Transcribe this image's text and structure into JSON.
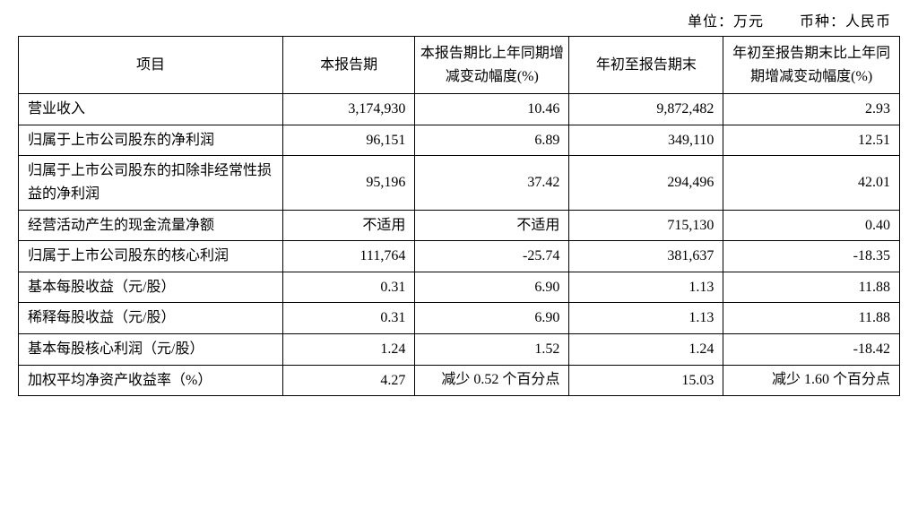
{
  "header": {
    "unit_label": "单位：万元",
    "currency_label": "币种：人民币"
  },
  "table": {
    "columns": [
      "项目",
      "本报告期",
      "本报告期比上年同期增减变动幅度(%)",
      "年初至报告期末",
      "年初至报告期末比上年同期增减变动幅度(%)"
    ],
    "column_widths_pct": [
      30,
      15,
      17.5,
      17.5,
      20
    ],
    "border_color": "#000000",
    "text_color": "#000000",
    "background_color": "#ffffff",
    "font_family": "SimSun",
    "header_fontsize_pt": 12,
    "cell_fontsize_pt": 12,
    "rows": [
      {
        "label": "营业收入",
        "period": "3,174,930",
        "period_change": "10.46",
        "ytd": "9,872,482",
        "ytd_change": "2.93"
      },
      {
        "label": "归属于上市公司股东的净利润",
        "period": "96,151",
        "period_change": "6.89",
        "ytd": "349,110",
        "ytd_change": "12.51"
      },
      {
        "label": "归属于上市公司股东的扣除非经常性损益的净利润",
        "period": "95,196",
        "period_change": "37.42",
        "ytd": "294,496",
        "ytd_change": "42.01"
      },
      {
        "label": "经营活动产生的现金流量净额",
        "period": "不适用",
        "period_change": "不适用",
        "ytd": "715,130",
        "ytd_change": "0.40"
      },
      {
        "label": "归属于上市公司股东的核心利润",
        "period": "111,764",
        "period_change": "-25.74",
        "ytd": "381,637",
        "ytd_change": "-18.35"
      },
      {
        "label": "基本每股收益（元/股）",
        "period": "0.31",
        "period_change": "6.90",
        "ytd": "1.13",
        "ytd_change": "11.88"
      },
      {
        "label": "稀释每股收益（元/股）",
        "period": "0.31",
        "period_change": "6.90",
        "ytd": "1.13",
        "ytd_change": "11.88"
      },
      {
        "label": "基本每股核心利润（元/股）",
        "period": "1.24",
        "period_change": "1.52",
        "ytd": "1.24",
        "ytd_change": "-18.42"
      },
      {
        "label": "加权平均净资产收益率（%）",
        "period": "4.27",
        "period_change": "减少 0.52 个百分点",
        "period_change_multiline": true,
        "ytd": "15.03",
        "ytd_change": "减少 1.60 个百分点",
        "ytd_change_multiline": true
      }
    ]
  }
}
